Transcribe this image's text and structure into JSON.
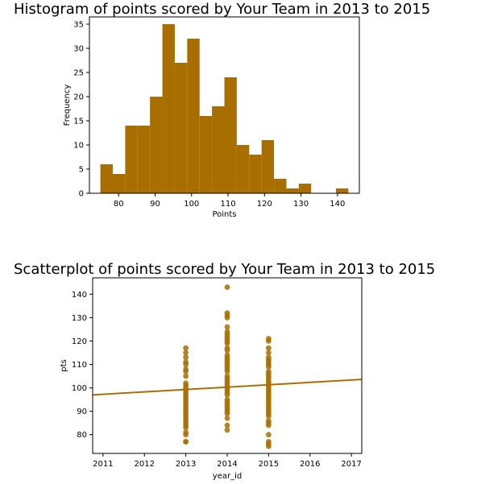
{
  "chart_data": [
    {
      "type": "histogram",
      "title": "Histogram of points scored by Your Team in 2013 to 2015",
      "xlabel": "Points",
      "ylabel": "Frequency",
      "bin_width": 3.4,
      "bins": [
        {
          "x0": 75.0,
          "x1": 78.4,
          "count": 6
        },
        {
          "x0": 78.4,
          "x1": 81.8,
          "count": 4
        },
        {
          "x0": 81.8,
          "x1": 85.2,
          "count": 14
        },
        {
          "x0": 85.2,
          "x1": 88.6,
          "count": 14
        },
        {
          "x0": 88.6,
          "x1": 92.0,
          "count": 20
        },
        {
          "x0": 92.0,
          "x1": 95.4,
          "count": 35
        },
        {
          "x0": 95.4,
          "x1": 98.8,
          "count": 27
        },
        {
          "x0": 98.8,
          "x1": 102.2,
          "count": 32
        },
        {
          "x0": 102.2,
          "x1": 105.6,
          "count": 16
        },
        {
          "x0": 105.6,
          "x1": 109.0,
          "count": 18
        },
        {
          "x0": 109.0,
          "x1": 112.4,
          "count": 24
        },
        {
          "x0": 112.4,
          "x1": 115.8,
          "count": 10
        },
        {
          "x0": 115.8,
          "x1": 119.2,
          "count": 8
        },
        {
          "x0": 119.2,
          "x1": 122.6,
          "count": 11
        },
        {
          "x0": 122.6,
          "x1": 126.0,
          "count": 3
        },
        {
          "x0": 126.0,
          "x1": 129.4,
          "count": 1
        },
        {
          "x0": 129.4,
          "x1": 132.8,
          "count": 2
        },
        {
          "x0": 132.8,
          "x1": 136.2,
          "count": 0
        },
        {
          "x0": 136.2,
          "x1": 139.6,
          "count": 0
        },
        {
          "x0": 139.6,
          "x1": 143.0,
          "count": 1
        }
      ],
      "xlim": [
        72.0,
        146.0
      ],
      "ylim": [
        0,
        36.5
      ],
      "xticks": [
        80,
        90,
        100,
        110,
        120,
        130,
        140
      ],
      "yticks": [
        0,
        5,
        10,
        15,
        20,
        25,
        30,
        35
      ],
      "color": "#A86F00",
      "grid": false
    },
    {
      "type": "scatter",
      "title": "Scatterplot of points scored by Your Team in 2013 to 2015",
      "xlabel": "year_id",
      "ylabel": "pts",
      "xlim": [
        2010.75,
        2017.25
      ],
      "ylim": [
        72,
        147
      ],
      "xticks": [
        2011,
        2012,
        2013,
        2014,
        2015,
        2016,
        2017
      ],
      "yticks": [
        80,
        90,
        100,
        110,
        120,
        130,
        140
      ],
      "points": [
        {
          "x": 2013,
          "y": 77
        },
        {
          "x": 2013,
          "y": 77
        },
        {
          "x": 2013,
          "y": 80
        },
        {
          "x": 2013,
          "y": 81
        },
        {
          "x": 2013,
          "y": 83
        },
        {
          "x": 2013,
          "y": 84
        },
        {
          "x": 2013,
          "y": 85
        },
        {
          "x": 2013,
          "y": 86
        },
        {
          "x": 2013,
          "y": 87
        },
        {
          "x": 2013,
          "y": 88
        },
        {
          "x": 2013,
          "y": 89
        },
        {
          "x": 2013,
          "y": 90
        },
        {
          "x": 2013,
          "y": 91
        },
        {
          "x": 2013,
          "y": 92
        },
        {
          "x": 2013,
          "y": 93
        },
        {
          "x": 2013,
          "y": 94
        },
        {
          "x": 2013,
          "y": 95
        },
        {
          "x": 2013,
          "y": 96
        },
        {
          "x": 2013,
          "y": 97
        },
        {
          "x": 2013,
          "y": 98
        },
        {
          "x": 2013,
          "y": 99
        },
        {
          "x": 2013,
          "y": 100
        },
        {
          "x": 2013,
          "y": 101
        },
        {
          "x": 2013,
          "y": 102
        },
        {
          "x": 2013,
          "y": 105
        },
        {
          "x": 2013,
          "y": 107
        },
        {
          "x": 2013,
          "y": 108
        },
        {
          "x": 2013,
          "y": 110
        },
        {
          "x": 2013,
          "y": 111
        },
        {
          "x": 2013,
          "y": 113
        },
        {
          "x": 2013,
          "y": 115
        },
        {
          "x": 2013,
          "y": 117
        },
        {
          "x": 2014,
          "y": 82
        },
        {
          "x": 2014,
          "y": 84
        },
        {
          "x": 2014,
          "y": 87
        },
        {
          "x": 2014,
          "y": 89
        },
        {
          "x": 2014,
          "y": 90
        },
        {
          "x": 2014,
          "y": 91
        },
        {
          "x": 2014,
          "y": 92
        },
        {
          "x": 2014,
          "y": 93
        },
        {
          "x": 2014,
          "y": 94
        },
        {
          "x": 2014,
          "y": 95
        },
        {
          "x": 2014,
          "y": 97
        },
        {
          "x": 2014,
          "y": 98
        },
        {
          "x": 2014,
          "y": 99
        },
        {
          "x": 2014,
          "y": 100
        },
        {
          "x": 2014,
          "y": 101
        },
        {
          "x": 2014,
          "y": 102
        },
        {
          "x": 2014,
          "y": 103
        },
        {
          "x": 2014,
          "y": 104
        },
        {
          "x": 2014,
          "y": 105
        },
        {
          "x": 2014,
          "y": 107
        },
        {
          "x": 2014,
          "y": 108
        },
        {
          "x": 2014,
          "y": 109
        },
        {
          "x": 2014,
          "y": 110
        },
        {
          "x": 2014,
          "y": 111
        },
        {
          "x": 2014,
          "y": 112
        },
        {
          "x": 2014,
          "y": 113
        },
        {
          "x": 2014,
          "y": 114
        },
        {
          "x": 2014,
          "y": 116
        },
        {
          "x": 2014,
          "y": 117
        },
        {
          "x": 2014,
          "y": 119
        },
        {
          "x": 2014,
          "y": 120
        },
        {
          "x": 2014,
          "y": 121
        },
        {
          "x": 2014,
          "y": 122
        },
        {
          "x": 2014,
          "y": 123
        },
        {
          "x": 2014,
          "y": 124
        },
        {
          "x": 2014,
          "y": 126
        },
        {
          "x": 2014,
          "y": 130
        },
        {
          "x": 2014,
          "y": 131
        },
        {
          "x": 2014,
          "y": 132
        },
        {
          "x": 2014,
          "y": 143
        },
        {
          "x": 2015,
          "y": 75
        },
        {
          "x": 2015,
          "y": 76
        },
        {
          "x": 2015,
          "y": 77
        },
        {
          "x": 2015,
          "y": 80
        },
        {
          "x": 2015,
          "y": 84
        },
        {
          "x": 2015,
          "y": 85
        },
        {
          "x": 2015,
          "y": 86
        },
        {
          "x": 2015,
          "y": 88
        },
        {
          "x": 2015,
          "y": 89
        },
        {
          "x": 2015,
          "y": 90
        },
        {
          "x": 2015,
          "y": 91
        },
        {
          "x": 2015,
          "y": 92
        },
        {
          "x": 2015,
          "y": 93
        },
        {
          "x": 2015,
          "y": 94
        },
        {
          "x": 2015,
          "y": 95
        },
        {
          "x": 2015,
          "y": 96
        },
        {
          "x": 2015,
          "y": 97
        },
        {
          "x": 2015,
          "y": 98
        },
        {
          "x": 2015,
          "y": 99
        },
        {
          "x": 2015,
          "y": 100
        },
        {
          "x": 2015,
          "y": 101
        },
        {
          "x": 2015,
          "y": 102
        },
        {
          "x": 2015,
          "y": 103
        },
        {
          "x": 2015,
          "y": 104
        },
        {
          "x": 2015,
          "y": 105
        },
        {
          "x": 2015,
          "y": 106
        },
        {
          "x": 2015,
          "y": 107
        },
        {
          "x": 2015,
          "y": 109
        },
        {
          "x": 2015,
          "y": 110
        },
        {
          "x": 2015,
          "y": 111
        },
        {
          "x": 2015,
          "y": 112
        },
        {
          "x": 2015,
          "y": 113
        },
        {
          "x": 2015,
          "y": 115
        },
        {
          "x": 2015,
          "y": 117
        },
        {
          "x": 2015,
          "y": 120
        },
        {
          "x": 2015,
          "y": 121
        }
      ],
      "regression_line": {
        "x": [
          2010.75,
          2017.25
        ],
        "y": [
          97.0,
          103.6
        ]
      },
      "color": "#A86F00",
      "grid": false
    }
  ]
}
